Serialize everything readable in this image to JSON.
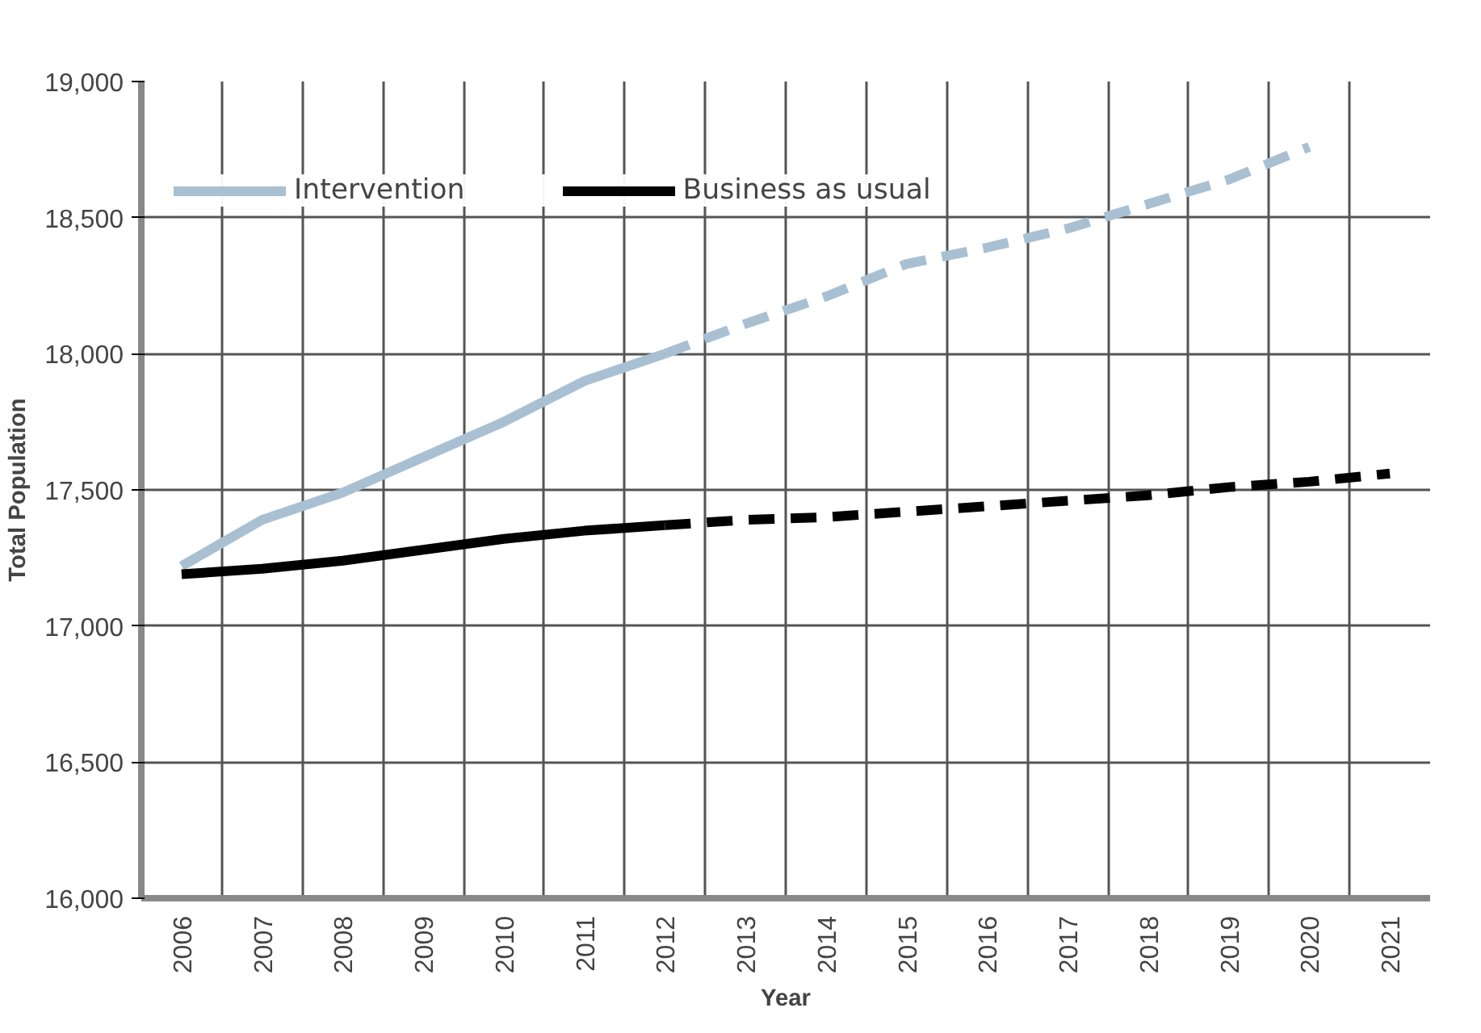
{
  "chart_data": {
    "type": "line",
    "xlabel": "Year",
    "ylabel": "Total Population",
    "categories": [
      "2006",
      "2007",
      "2008",
      "2009",
      "2010",
      "2011",
      "2012",
      "2013",
      "2014",
      "2015",
      "2016",
      "2017",
      "2018",
      "2019",
      "2020",
      "2021"
    ],
    "series": [
      {
        "name": "Intervention",
        "color": "#a9c0d3",
        "line_style": "solid",
        "values": [
          17220,
          17390,
          17490,
          17620,
          17750,
          17900,
          18000,
          null,
          null,
          null,
          null,
          null,
          null,
          null,
          null,
          null
        ]
      },
      {
        "name": "Business as usual",
        "color": "#000000",
        "line_style": "solid",
        "values": [
          17190,
          17210,
          17240,
          17280,
          17320,
          17350,
          17370,
          null,
          null,
          null,
          null,
          null,
          null,
          null,
          null,
          null
        ]
      },
      {
        "color": "#a9c0d3",
        "line_style": "dashed",
        "values": [
          null,
          null,
          null,
          null,
          null,
          null,
          18000,
          18110,
          18210,
          18330,
          18390,
          18460,
          18550,
          18640,
          18760,
          null
        ]
      },
      {
        "color": "#000000",
        "line_style": "dashed",
        "values": [
          null,
          null,
          null,
          null,
          null,
          null,
          17370,
          17390,
          17400,
          17420,
          17440,
          17460,
          17480,
          17510,
          17530,
          17560
        ]
      }
    ],
    "ylim": [
      16000,
      19000
    ],
    "yticks": [
      {
        "value": 16000,
        "label": "16,000"
      },
      {
        "value": 16500,
        "label": "16,500"
      },
      {
        "value": 17000,
        "label": "17,000"
      },
      {
        "value": 17500,
        "label": "17,500"
      },
      {
        "value": 18000,
        "label": "18,000"
      },
      {
        "value": 18500,
        "label": "18,500"
      },
      {
        "value": 19000,
        "label": "19,000"
      }
    ],
    "grid": true,
    "legend": "top",
    "marker": "none"
  }
}
